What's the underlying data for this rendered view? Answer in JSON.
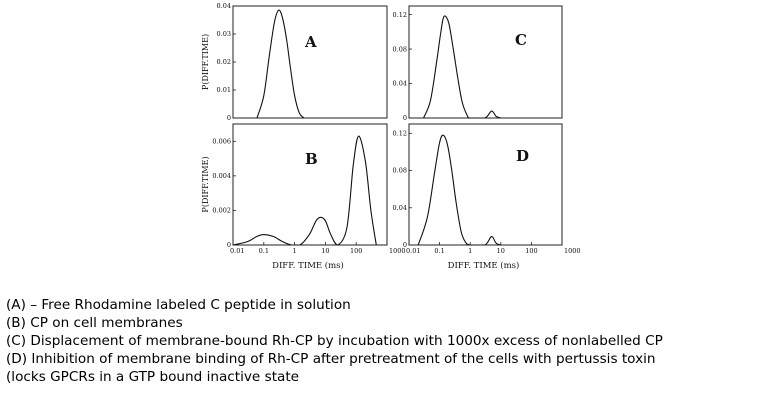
{
  "chart_data": [
    {
      "type": "line",
      "panel_label": "A",
      "xlabel": "",
      "ylabel": "P(DIFF.TIME)",
      "x_scale": "log",
      "xlim": [
        0.01,
        1000
      ],
      "ylim": [
        0,
        0.04
      ],
      "yticks": [
        "0.04",
        "0.03",
        "0.02",
        "0.01",
        "0"
      ],
      "xticks": [],
      "series": [
        {
          "x": [
            0.06,
            0.1,
            0.15,
            0.22,
            0.3,
            0.4,
            0.55,
            0.75,
            1.0,
            1.4,
            2.0
          ],
          "y": [
            0,
            0.008,
            0.022,
            0.034,
            0.0385,
            0.036,
            0.028,
            0.017,
            0.008,
            0.002,
            0
          ]
        }
      ]
    },
    {
      "type": "line",
      "panel_label": "C",
      "xlabel": "",
      "ylabel": "",
      "x_scale": "log",
      "xlim": [
        0.01,
        1000
      ],
      "ylim": [
        0,
        0.13
      ],
      "yticks": [
        "0.12",
        "0.08",
        "0.04",
        "0"
      ],
      "xticks": [],
      "series": [
        {
          "x": [
            0.03,
            0.05,
            0.08,
            0.11,
            0.14,
            0.2,
            0.28,
            0.4,
            0.55,
            0.8,
            1.0,
            3.0,
            5.0,
            7.0,
            10.0
          ],
          "y": [
            0,
            0.02,
            0.065,
            0.1,
            0.118,
            0.11,
            0.08,
            0.045,
            0.018,
            0.003,
            0,
            0,
            0.008,
            0.002,
            0
          ]
        }
      ]
    },
    {
      "type": "line",
      "panel_label": "B",
      "xlabel": "DIFF. TIME (ms)",
      "ylabel": "P(DIFF.TIME)",
      "x_scale": "log",
      "xlim": [
        0.01,
        1000
      ],
      "ylim": [
        0,
        0.007
      ],
      "yticks": [
        "0.006",
        "0.004",
        "0.002",
        "0"
      ],
      "xticks": [
        "0.01",
        "0.1",
        "1",
        "10",
        "100",
        "1000"
      ],
      "series": [
        {
          "x": [
            0.01,
            0.03,
            0.06,
            0.1,
            0.2,
            0.4,
            0.8,
            1.5,
            3.0,
            5.0,
            7.0,
            10.0,
            15.0,
            25.0,
            50.0,
            80.0,
            120.0,
            200.0,
            300.0,
            450.0
          ],
          "y": [
            0,
            0.0002,
            0.0005,
            0.0006,
            0.0005,
            0.0002,
            0,
            0,
            0.0006,
            0.0014,
            0.0016,
            0.0014,
            0.0006,
            0,
            0.001,
            0.0046,
            0.0063,
            0.0048,
            0.002,
            0
          ]
        }
      ]
    },
    {
      "type": "line",
      "panel_label": "D",
      "xlabel": "DIFF. TIME (ms)",
      "ylabel": "",
      "x_scale": "log",
      "xlim": [
        0.01,
        1000
      ],
      "ylim": [
        0,
        0.13
      ],
      "yticks": [
        "0.12",
        "0.08",
        "0.04",
        "0"
      ],
      "xticks": [
        "0.01",
        "0.1",
        "1",
        "10",
        "100",
        "1000"
      ],
      "series": [
        {
          "x": [
            0.02,
            0.04,
            0.07,
            0.1,
            0.13,
            0.18,
            0.25,
            0.35,
            0.5,
            0.7,
            1.0,
            3.0,
            5.0,
            7.0,
            10.0
          ],
          "y": [
            0,
            0.03,
            0.08,
            0.11,
            0.118,
            0.108,
            0.08,
            0.045,
            0.015,
            0.003,
            0,
            0,
            0.009,
            0.002,
            0
          ]
        }
      ]
    }
  ],
  "caption": [
    "(A) – Free Rhodamine labeled C peptide in solution",
    "(B) CP on cell membranes",
    "(C) Displacement of membrane-bound Rh-CP by incubation with 1000x excess of nonlabelled CP",
    "(D) Inhibition of membrane binding of Rh-CP after pretreatment of the cells with pertussis toxin",
    "(locks GPCRs in a GTP bound inactive state"
  ]
}
